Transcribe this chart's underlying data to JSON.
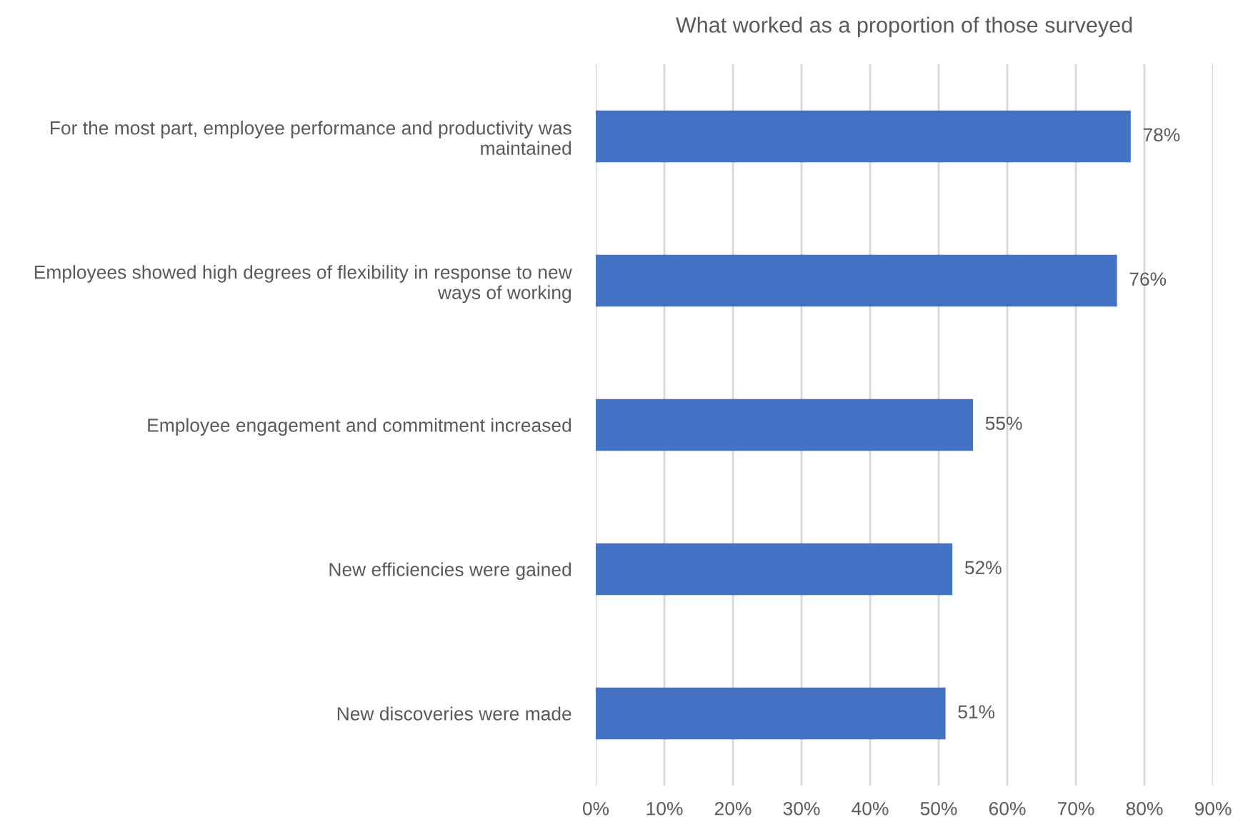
{
  "chart_data": {
    "type": "bar",
    "orientation": "horizontal",
    "title": "What worked as a proportion of those surveyed",
    "categories": [
      "For the most part, employee performance and productivity was\nmaintained",
      "Employees showed high degrees of flexibility in response to new\nways of working",
      "Employee engagement and commitment increased",
      "New efficiencies were gained",
      "New discoveries were made"
    ],
    "values": [
      78,
      76,
      55,
      52,
      51
    ],
    "value_labels": [
      "78%",
      "76%",
      "55%",
      "52%",
      "51%"
    ],
    "color": "#4472c4",
    "xlim": [
      0,
      90
    ],
    "xticks": [
      {
        "value": 0,
        "label": "0%"
      },
      {
        "value": 10,
        "label": "10%"
      },
      {
        "value": 20,
        "label": "20%"
      },
      {
        "value": 30,
        "label": "30%"
      },
      {
        "value": 40,
        "label": "40%"
      },
      {
        "value": 50,
        "label": "50%"
      },
      {
        "value": 60,
        "label": "60%"
      },
      {
        "value": 70,
        "label": "70%"
      },
      {
        "value": 80,
        "label": "80%"
      },
      {
        "value": 90,
        "label": "90%"
      }
    ],
    "grid": "x"
  }
}
